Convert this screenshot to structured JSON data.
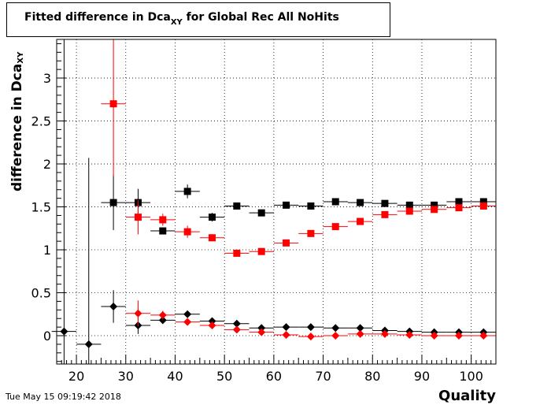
{
  "chart_data": {
    "type": "scatter",
    "title_main": "Fitted difference in Dca",
    "title_sub": "XY",
    "title_rest": " for Global Rec All NoHits",
    "ylabel_main": "difference in Dca",
    "ylabel_sub": "XY",
    "xlabel": "Quality",
    "xlim": [
      16,
      105
    ],
    "ylim": [
      -0.33,
      3.45
    ],
    "xticks": [
      20,
      30,
      40,
      50,
      60,
      70,
      80,
      90,
      100
    ],
    "yticks": [
      0,
      0.5,
      1,
      1.5,
      2,
      2.5,
      3
    ],
    "ytick_labels": [
      "0",
      "0.5",
      "1",
      "1.5",
      "2",
      "2.5",
      "3"
    ],
    "grid": true,
    "series": [
      {
        "marker": "square",
        "color": "#000000",
        "points": [
          {
            "x": 27.5,
            "y": 1.55,
            "ey": 0.32
          },
          {
            "x": 32.5,
            "y": 1.55,
            "ey": 0.16
          },
          {
            "x": 37.5,
            "y": 1.22,
            "ey": 0.03
          },
          {
            "x": 42.5,
            "y": 1.68,
            "ey": 0.08
          },
          {
            "x": 47.5,
            "y": 1.38,
            "ey": 0.05
          },
          {
            "x": 52.5,
            "y": 1.51,
            "ey": 0.02
          },
          {
            "x": 57.5,
            "y": 1.43,
            "ey": 0.02
          },
          {
            "x": 62.5,
            "y": 1.52,
            "ey": 0.02
          },
          {
            "x": 67.5,
            "y": 1.51,
            "ey": 0.02
          },
          {
            "x": 72.5,
            "y": 1.56,
            "ey": 0.02
          },
          {
            "x": 77.5,
            "y": 1.55,
            "ey": 0.02
          },
          {
            "x": 82.5,
            "y": 1.54,
            "ey": 0.02
          },
          {
            "x": 87.5,
            "y": 1.52,
            "ey": 0.02
          },
          {
            "x": 92.5,
            "y": 1.52,
            "ey": 0.02
          },
          {
            "x": 97.5,
            "y": 1.56,
            "ey": 0.02
          },
          {
            "x": 102.5,
            "y": 1.56,
            "ey": 0.02
          }
        ]
      },
      {
        "marker": "square",
        "color": "#ff0000",
        "points": [
          {
            "x": 27.5,
            "y": 2.7,
            "ey": 0.85
          },
          {
            "x": 32.5,
            "y": 1.38,
            "ey": 0.2
          },
          {
            "x": 37.5,
            "y": 1.35,
            "ey": 0.07
          },
          {
            "x": 42.5,
            "y": 1.21,
            "ey": 0.07
          },
          {
            "x": 47.5,
            "y": 1.14,
            "ey": 0.04
          },
          {
            "x": 52.5,
            "y": 0.96,
            "ey": 0.02
          },
          {
            "x": 57.5,
            "y": 0.98,
            "ey": 0.02
          },
          {
            "x": 62.5,
            "y": 1.08,
            "ey": 0.02
          },
          {
            "x": 67.5,
            "y": 1.19,
            "ey": 0.02
          },
          {
            "x": 72.5,
            "y": 1.27,
            "ey": 0.02
          },
          {
            "x": 77.5,
            "y": 1.33,
            "ey": 0.02
          },
          {
            "x": 82.5,
            "y": 1.41,
            "ey": 0.02
          },
          {
            "x": 87.5,
            "y": 1.45,
            "ey": 0.02
          },
          {
            "x": 92.5,
            "y": 1.47,
            "ey": 0.02
          },
          {
            "x": 97.5,
            "y": 1.49,
            "ey": 0.02
          },
          {
            "x": 102.5,
            "y": 1.51,
            "ey": 0.02
          }
        ]
      },
      {
        "marker": "diamond",
        "color": "#000000",
        "points": [
          {
            "x": 17.5,
            "y": 0.05,
            "ey": 3.5
          },
          {
            "x": 22.5,
            "y": -0.1,
            "ey": 2.17
          },
          {
            "x": 27.5,
            "y": 0.34,
            "ey": 0.19
          },
          {
            "x": 32.5,
            "y": 0.12,
            "ey": 0.1
          },
          {
            "x": 37.5,
            "y": 0.18,
            "ey": 0.04
          },
          {
            "x": 42.5,
            "y": 0.25,
            "ey": 0.03
          },
          {
            "x": 47.5,
            "y": 0.17,
            "ey": 0.02
          },
          {
            "x": 52.5,
            "y": 0.14,
            "ey": 0.01
          },
          {
            "x": 57.5,
            "y": 0.09,
            "ey": 0.01
          },
          {
            "x": 62.5,
            "y": 0.1,
            "ey": 0.01
          },
          {
            "x": 67.5,
            "y": 0.1,
            "ey": 0.01
          },
          {
            "x": 72.5,
            "y": 0.09,
            "ey": 0.01
          },
          {
            "x": 77.5,
            "y": 0.09,
            "ey": 0.01
          },
          {
            "x": 82.5,
            "y": 0.06,
            "ey": 0.01
          },
          {
            "x": 87.5,
            "y": 0.05,
            "ey": 0.01
          },
          {
            "x": 92.5,
            "y": 0.04,
            "ey": 0.01
          },
          {
            "x": 97.5,
            "y": 0.04,
            "ey": 0.01
          },
          {
            "x": 102.5,
            "y": 0.04,
            "ey": 0.01
          }
        ]
      },
      {
        "marker": "diamond",
        "color": "#ff0000",
        "points": [
          {
            "x": 32.5,
            "y": 0.26,
            "ey": 0.15
          },
          {
            "x": 37.5,
            "y": 0.24,
            "ey": 0.05
          },
          {
            "x": 42.5,
            "y": 0.16,
            "ey": 0.03
          },
          {
            "x": 47.5,
            "y": 0.12,
            "ey": 0.02
          },
          {
            "x": 52.5,
            "y": 0.07,
            "ey": 0.01
          },
          {
            "x": 57.5,
            "y": 0.04,
            "ey": 0.01
          },
          {
            "x": 62.5,
            "y": 0.01,
            "ey": 0.01
          },
          {
            "x": 67.5,
            "y": -0.01,
            "ey": 0.01
          },
          {
            "x": 72.5,
            "y": 0.0,
            "ey": 0.01
          },
          {
            "x": 77.5,
            "y": 0.02,
            "ey": 0.01
          },
          {
            "x": 82.5,
            "y": 0.02,
            "ey": 0.01
          },
          {
            "x": 87.5,
            "y": 0.01,
            "ey": 0.01
          },
          {
            "x": 92.5,
            "y": 0.0,
            "ey": 0.01
          },
          {
            "x": 97.5,
            "y": 0.0,
            "ey": 0.01
          },
          {
            "x": 102.5,
            "y": 0.0,
            "ey": 0.01
          }
        ]
      }
    ]
  },
  "timestamp": "Tue May 15 09:19:42 2018"
}
